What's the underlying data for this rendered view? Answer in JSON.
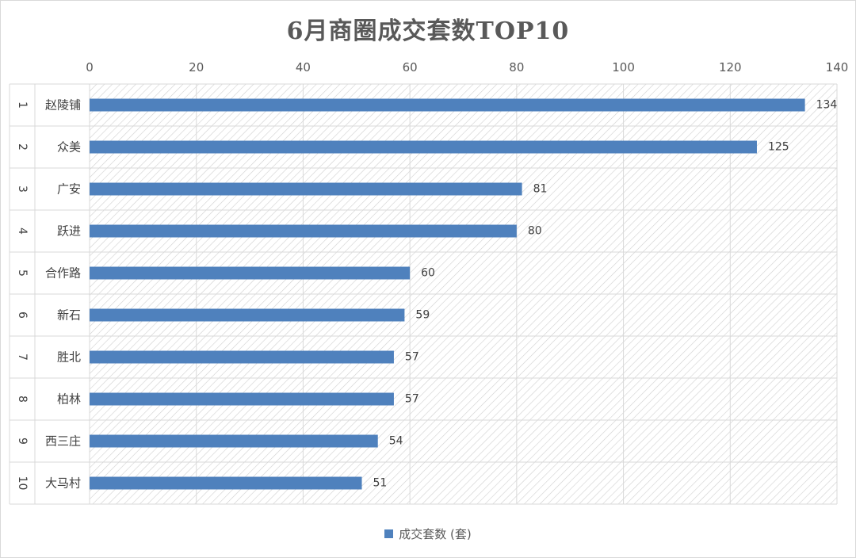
{
  "colors": {
    "bar": "#4f81bd",
    "grid": "#d9d9d9",
    "hatch": "#cfcfcf",
    "text": "#595959"
  },
  "chart_data": {
    "type": "bar",
    "orientation": "horizontal",
    "title": "6月商圈成交套数TOP10",
    "categories": [
      {
        "rank": "1",
        "name": "赵陵铺"
      },
      {
        "rank": "2",
        "name": "众美"
      },
      {
        "rank": "3",
        "name": "广安"
      },
      {
        "rank": "4",
        "name": "跃进"
      },
      {
        "rank": "5",
        "name": "合作路"
      },
      {
        "rank": "6",
        "name": "新石"
      },
      {
        "rank": "7",
        "name": "胜北"
      },
      {
        "rank": "8",
        "name": "柏林"
      },
      {
        "rank": "9",
        "name": "西三庄"
      },
      {
        "rank": "10",
        "name": "大马村"
      }
    ],
    "series": [
      {
        "name": "成交套数 (套)",
        "values": [
          134,
          125,
          81,
          80,
          60,
          59,
          57,
          57,
          54,
          51
        ]
      }
    ],
    "xlim": [
      0,
      140
    ],
    "xticks": [
      0,
      20,
      40,
      60,
      80,
      100,
      120,
      140
    ],
    "x_axis_position": "top",
    "grid": true,
    "data_labels": true,
    "legend": "bottom"
  }
}
